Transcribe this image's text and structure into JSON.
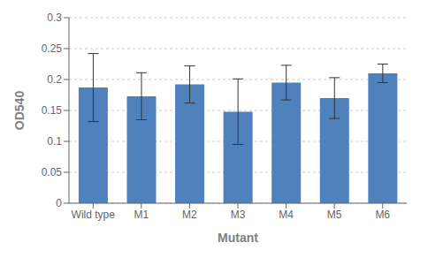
{
  "chart_data": {
    "type": "bar",
    "categories": [
      "Wild type",
      "M1",
      "M2",
      "M3",
      "M4",
      "M5",
      "M6"
    ],
    "values": [
      0.187,
      0.173,
      0.192,
      0.148,
      0.195,
      0.17,
      0.21
    ],
    "errors": [
      0.055,
      0.038,
      0.03,
      0.053,
      0.028,
      0.033,
      0.015
    ],
    "color": "#4F81BD",
    "xlabel": "Mutant",
    "ylabel": "OD540",
    "ylim": [
      0,
      0.3
    ],
    "yticks": [
      0,
      0.05,
      0.1,
      0.15,
      0.2,
      0.25,
      0.3
    ],
    "grid": true
  }
}
